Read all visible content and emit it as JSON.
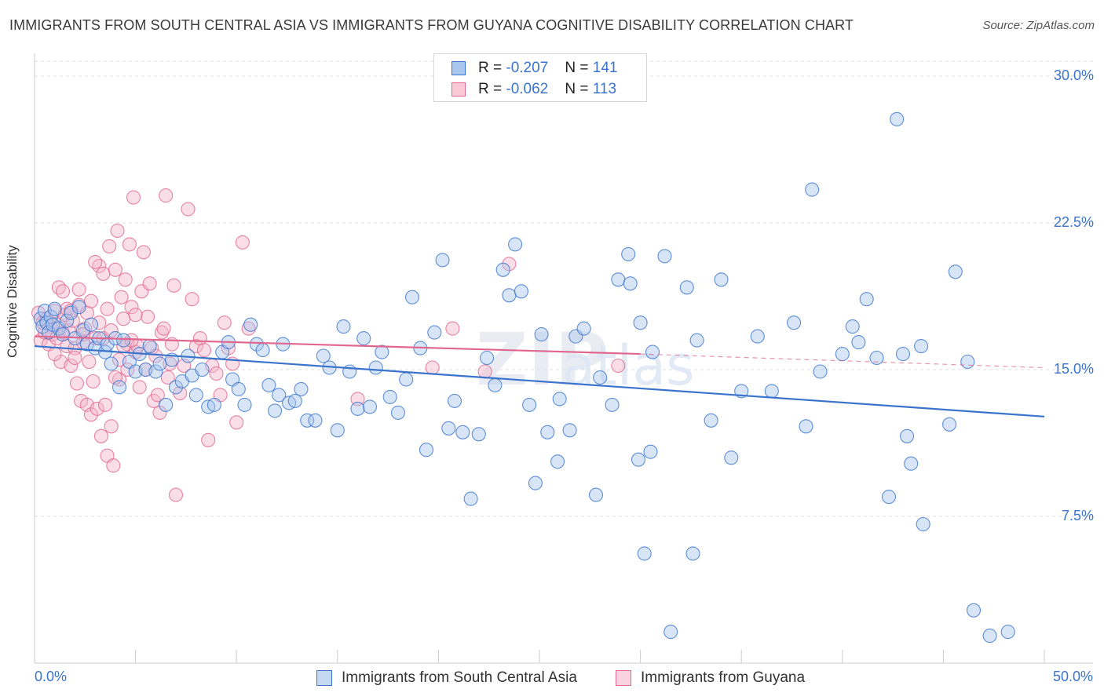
{
  "header": {
    "title": "IMMIGRANTS FROM SOUTH CENTRAL ASIA VS IMMIGRANTS FROM GUYANA COGNITIVE DISABILITY CORRELATION CHART",
    "source": "Source: ZipAtlas.com"
  },
  "stats": {
    "blue": {
      "r_label": "R = ",
      "r_value": "-0.207",
      "n_label": "N = ",
      "n_value": "141"
    },
    "pink": {
      "r_label": "R = ",
      "r_value": "-0.062",
      "n_label": "N = ",
      "n_value": "113"
    }
  },
  "legend": {
    "blue_label": "Immigrants from South Central Asia",
    "pink_label": "Immigrants from Guyana"
  },
  "colors": {
    "blue": "#3a74cc",
    "blue_fill": "#a9c6ee",
    "pink": "#e0688f",
    "pink_fill": "#f4b6ca",
    "grid": "#dddddd"
  },
  "chart_data": {
    "type": "scatter",
    "title": "IMMIGRANTS FROM SOUTH CENTRAL ASIA VS IMMIGRANTS FROM GUYANA COGNITIVE DISABILITY CORRELATION CHART",
    "xlabel": "",
    "ylabel": "Cognitive Disability",
    "xlim": [
      0,
      50
    ],
    "ylim": [
      0,
      30.5
    ],
    "x_tick_labels": [
      "0.0%",
      "50.0%"
    ],
    "y_ticks": [
      7.5,
      15.0,
      22.5,
      30.0
    ],
    "y_tick_labels": [
      "7.5%",
      "15.0%",
      "22.5%",
      "30.0%"
    ],
    "grid": "horizontal dashed",
    "watermark": "ZIPatlas",
    "series": [
      {
        "name": "Immigrants from South Central Asia",
        "color": "#3a74cc",
        "trend": {
          "x": [
            0,
            50
          ],
          "y": [
            16.2,
            12.6
          ],
          "style": "solid"
        },
        "points": [
          [
            0.3,
            17.6
          ],
          [
            0.4,
            17.2
          ],
          [
            0.5,
            18.0
          ],
          [
            0.6,
            17.4
          ],
          [
            0.7,
            16.9
          ],
          [
            0.8,
            17.7
          ],
          [
            0.9,
            17.3
          ],
          [
            1.0,
            18.1
          ],
          [
            1.2,
            17.1
          ],
          [
            1.4,
            16.8
          ],
          [
            1.6,
            17.5
          ],
          [
            1.8,
            17.9
          ],
          [
            2.0,
            16.6
          ],
          [
            2.2,
            18.2
          ],
          [
            2.4,
            17.0
          ],
          [
            2.6,
            16.3
          ],
          [
            2.8,
            17.3
          ],
          [
            3.0,
            16.1
          ],
          [
            3.2,
            16.6
          ],
          [
            3.5,
            15.9
          ],
          [
            3.6,
            16.3
          ],
          [
            3.8,
            15.3
          ],
          [
            4.0,
            16.6
          ],
          [
            4.2,
            14.1
          ],
          [
            4.4,
            16.5
          ],
          [
            4.7,
            15.4
          ],
          [
            5.0,
            14.9
          ],
          [
            5.2,
            15.8
          ],
          [
            5.5,
            15.0
          ],
          [
            5.7,
            16.2
          ],
          [
            6.0,
            14.9
          ],
          [
            6.2,
            15.3
          ],
          [
            6.5,
            13.2
          ],
          [
            6.8,
            15.5
          ],
          [
            7.0,
            14.1
          ],
          [
            7.3,
            14.4
          ],
          [
            7.6,
            15.7
          ],
          [
            7.8,
            14.7
          ],
          [
            8.0,
            13.7
          ],
          [
            8.3,
            15.0
          ],
          [
            8.6,
            13.1
          ],
          [
            8.9,
            13.2
          ],
          [
            9.3,
            15.9
          ],
          [
            9.6,
            16.4
          ],
          [
            9.8,
            14.5
          ],
          [
            10.1,
            14.0
          ],
          [
            10.4,
            13.2
          ],
          [
            10.7,
            17.3
          ],
          [
            11.0,
            16.3
          ],
          [
            11.3,
            16.0
          ],
          [
            11.6,
            14.2
          ],
          [
            11.9,
            12.9
          ],
          [
            12.1,
            13.7
          ],
          [
            12.3,
            16.3
          ],
          [
            12.6,
            13.3
          ],
          [
            12.9,
            13.4
          ],
          [
            13.2,
            14.0
          ],
          [
            13.5,
            12.4
          ],
          [
            13.9,
            12.4
          ],
          [
            14.3,
            15.7
          ],
          [
            14.6,
            15.1
          ],
          [
            15.0,
            11.9
          ],
          [
            15.3,
            17.2
          ],
          [
            15.6,
            14.9
          ],
          [
            16.0,
            13.0
          ],
          [
            16.3,
            16.6
          ],
          [
            16.6,
            13.1
          ],
          [
            16.9,
            15.1
          ],
          [
            17.2,
            15.9
          ],
          [
            17.6,
            13.6
          ],
          [
            18.0,
            12.8
          ],
          [
            18.4,
            14.5
          ],
          [
            18.7,
            18.7
          ],
          [
            19.1,
            16.1
          ],
          [
            19.4,
            10.9
          ],
          [
            19.8,
            16.9
          ],
          [
            20.2,
            20.6
          ],
          [
            20.5,
            12.0
          ],
          [
            20.8,
            13.4
          ],
          [
            21.2,
            11.8
          ],
          [
            21.6,
            8.4
          ],
          [
            22.0,
            11.7
          ],
          [
            22.4,
            15.6
          ],
          [
            22.8,
            14.2
          ],
          [
            23.2,
            20.1
          ],
          [
            23.5,
            18.8
          ],
          [
            23.8,
            21.4
          ],
          [
            24.1,
            19.0
          ],
          [
            24.5,
            13.2
          ],
          [
            24.8,
            9.2
          ],
          [
            25.1,
            16.8
          ],
          [
            25.4,
            11.8
          ],
          [
            26.0,
            13.5
          ],
          [
            26.5,
            11.9
          ],
          [
            26.8,
            16.7
          ],
          [
            27.2,
            17.1
          ],
          [
            27.8,
            8.6
          ],
          [
            28.0,
            14.6
          ],
          [
            28.6,
            13.2
          ],
          [
            28.9,
            19.6
          ],
          [
            29.4,
            20.9
          ],
          [
            29.9,
            10.4
          ],
          [
            30.5,
            10.8
          ],
          [
            31.2,
            20.8
          ],
          [
            32.3,
            19.2
          ],
          [
            32.8,
            16.5
          ],
          [
            33.5,
            12.4
          ],
          [
            34.0,
            19.6
          ],
          [
            34.5,
            10.5
          ],
          [
            35.0,
            13.9
          ],
          [
            35.8,
            16.7
          ],
          [
            36.5,
            13.9
          ],
          [
            37.6,
            17.4
          ],
          [
            38.2,
            12.1
          ],
          [
            38.5,
            24.2
          ],
          [
            38.9,
            14.9
          ],
          [
            40.0,
            15.8
          ],
          [
            40.5,
            17.2
          ],
          [
            40.8,
            16.4
          ],
          [
            41.2,
            18.6
          ],
          [
            41.7,
            15.6
          ],
          [
            42.3,
            8.5
          ],
          [
            42.7,
            27.8
          ],
          [
            43.0,
            15.8
          ],
          [
            43.2,
            11.6
          ],
          [
            43.4,
            10.2
          ],
          [
            43.9,
            16.2
          ],
          [
            44.0,
            7.1
          ],
          [
            45.3,
            12.2
          ],
          [
            45.6,
            20.0
          ],
          [
            46.2,
            15.4
          ],
          [
            46.5,
            2.7
          ],
          [
            47.3,
            1.4
          ],
          [
            48.2,
            1.6
          ],
          [
            30.0,
            17.4
          ],
          [
            30.6,
            15.9
          ],
          [
            25.9,
            10.3
          ],
          [
            29.5,
            19.4
          ],
          [
            31.5,
            1.6
          ],
          [
            30.2,
            5.6
          ],
          [
            32.6,
            5.6
          ]
        ]
      },
      {
        "name": "Immigrants from Guyana",
        "color": "#e0688f",
        "trend": {
          "x": [
            0,
            30
          ],
          "y": [
            16.7,
            15.8
          ],
          "style": "solid",
          "extension": {
            "x": [
              30,
              50
            ],
            "y": [
              15.8,
              15.1
            ],
            "style": "dashed"
          }
        },
        "points": [
          [
            0.2,
            17.9
          ],
          [
            0.3,
            16.5
          ],
          [
            0.4,
            17.4
          ],
          [
            0.5,
            16.9
          ],
          [
            0.6,
            17.6
          ],
          [
            0.7,
            16.3
          ],
          [
            0.8,
            17.2
          ],
          [
            0.9,
            16.8
          ],
          [
            1.0,
            18.0
          ],
          [
            1.1,
            16.6
          ],
          [
            1.2,
            17.3
          ],
          [
            1.3,
            15.4
          ],
          [
            1.4,
            16.9
          ],
          [
            1.5,
            17.8
          ],
          [
            1.6,
            16.2
          ],
          [
            1.7,
            17.0
          ],
          [
            1.8,
            15.2
          ],
          [
            1.9,
            17.5
          ],
          [
            2.0,
            16.1
          ],
          [
            2.1,
            14.3
          ],
          [
            2.2,
            18.3
          ],
          [
            2.3,
            13.4
          ],
          [
            2.4,
            16.4
          ],
          [
            2.5,
            17.1
          ],
          [
            2.6,
            13.2
          ],
          [
            2.7,
            15.4
          ],
          [
            2.8,
            12.7
          ],
          [
            2.9,
            14.4
          ],
          [
            3.0,
            16.6
          ],
          [
            3.1,
            13.0
          ],
          [
            3.2,
            20.3
          ],
          [
            3.3,
            11.6
          ],
          [
            3.4,
            19.9
          ],
          [
            3.5,
            13.2
          ],
          [
            3.6,
            10.6
          ],
          [
            3.7,
            21.3
          ],
          [
            3.8,
            12.1
          ],
          [
            3.9,
            10.1
          ],
          [
            4.0,
            20.1
          ],
          [
            4.1,
            22.1
          ],
          [
            4.2,
            14.5
          ],
          [
            4.3,
            18.7
          ],
          [
            4.4,
            17.6
          ],
          [
            4.5,
            19.6
          ],
          [
            4.6,
            16.3
          ],
          [
            4.7,
            21.4
          ],
          [
            4.8,
            18.2
          ],
          [
            4.9,
            23.8
          ],
          [
            5.0,
            15.9
          ],
          [
            5.1,
            16.2
          ],
          [
            5.2,
            14.1
          ],
          [
            5.3,
            19.0
          ],
          [
            5.4,
            21.0
          ],
          [
            5.5,
            15.0
          ],
          [
            5.6,
            17.7
          ],
          [
            5.7,
            19.4
          ],
          [
            5.8,
            16.1
          ],
          [
            5.9,
            13.4
          ],
          [
            6.0,
            15.7
          ],
          [
            6.1,
            13.7
          ],
          [
            6.2,
            12.8
          ],
          [
            6.3,
            16.9
          ],
          [
            6.4,
            17.1
          ],
          [
            6.5,
            23.9
          ],
          [
            6.6,
            14.6
          ],
          [
            6.7,
            15.3
          ],
          [
            6.8,
            16.3
          ],
          [
            6.9,
            19.3
          ],
          [
            7.0,
            8.6
          ],
          [
            7.2,
            13.8
          ],
          [
            7.4,
            15.2
          ],
          [
            7.6,
            23.2
          ],
          [
            7.8,
            18.6
          ],
          [
            8.0,
            16.2
          ],
          [
            8.2,
            16.6
          ],
          [
            8.4,
            16.0
          ],
          [
            8.6,
            11.4
          ],
          [
            8.8,
            15.2
          ],
          [
            9.0,
            14.8
          ],
          [
            9.2,
            13.7
          ],
          [
            9.4,
            17.4
          ],
          [
            9.6,
            16.1
          ],
          [
            9.8,
            15.3
          ],
          [
            10.0,
            12.3
          ],
          [
            10.3,
            21.5
          ],
          [
            10.6,
            17.1
          ],
          [
            1.0,
            15.8
          ],
          [
            1.2,
            19.2
          ],
          [
            1.4,
            19.0
          ],
          [
            1.6,
            18.1
          ],
          [
            1.8,
            18.0
          ],
          [
            2.0,
            15.6
          ],
          [
            2.2,
            19.1
          ],
          [
            2.4,
            16.8
          ],
          [
            2.6,
            17.9
          ],
          [
            2.8,
            18.5
          ],
          [
            3.0,
            20.5
          ],
          [
            3.2,
            17.4
          ],
          [
            3.4,
            16.6
          ],
          [
            3.6,
            18.1
          ],
          [
            3.8,
            17.0
          ],
          [
            4.0,
            14.6
          ],
          [
            4.2,
            15.5
          ],
          [
            4.4,
            16.2
          ],
          [
            4.6,
            15.0
          ],
          [
            4.8,
            16.5
          ],
          [
            5.0,
            17.8
          ],
          [
            28.9,
            15.2
          ],
          [
            20.7,
            17.1
          ],
          [
            23.5,
            20.4
          ],
          [
            16.0,
            13.5
          ],
          [
            22.3,
            14.9
          ],
          [
            19.7,
            15.1
          ]
        ]
      }
    ]
  }
}
